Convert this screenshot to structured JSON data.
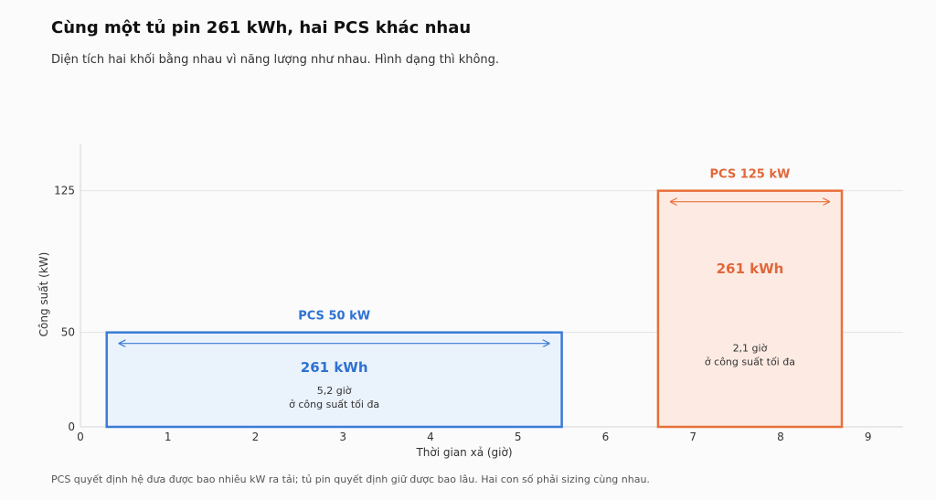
{
  "header": {
    "title": "Cùng một tủ pin 261 kWh, hai PCS khác nhau",
    "subtitle": "Diện tích hai khối bằng nhau vì năng lượng như nhau. Hình dạng thì không."
  },
  "footnote": "PCS quyết định hệ đưa được bao nhiêu kW ra tải; tủ pin quyết định giữ được bao lâu. Hai con số phải sizing cùng nhau.",
  "colors": {
    "blue_stroke": "#3a7bd5",
    "blue_fill": "#eaf2fc",
    "blue_text": "#2f72d0",
    "orange_stroke": "#e8703a",
    "orange_fill": "#fdebe3",
    "orange_text": "#e0683a",
    "grid": "#e3e3e3"
  },
  "chart_data": {
    "type": "bar",
    "xlabel": "Thời gian xả (giờ)",
    "ylabel": "Công suất (kW)",
    "xlim": [
      0,
      9.4
    ],
    "ylim": [
      0,
      150
    ],
    "x_ticks": [
      0,
      1,
      2,
      3,
      4,
      5,
      6,
      7,
      8,
      9
    ],
    "y_ticks": [
      0,
      50,
      125
    ],
    "grid": true,
    "blocks": [
      {
        "key": "pcs50",
        "label": "PCS 50 kW",
        "power_kw": 50,
        "x_start": 0.3,
        "x_end": 5.5,
        "energy_label": "261 kWh",
        "duration_label": "5,2 giờ",
        "note_label": "ở công suất tối đa",
        "color": "blue"
      },
      {
        "key": "pcs125",
        "label": "PCS 125 kW",
        "power_kw": 125,
        "x_start": 6.6,
        "x_end": 8.7,
        "energy_label": "261 kWh",
        "duration_label": "2,1 giờ",
        "note_label": "ở công suất tối đa",
        "color": "orange"
      }
    ]
  }
}
